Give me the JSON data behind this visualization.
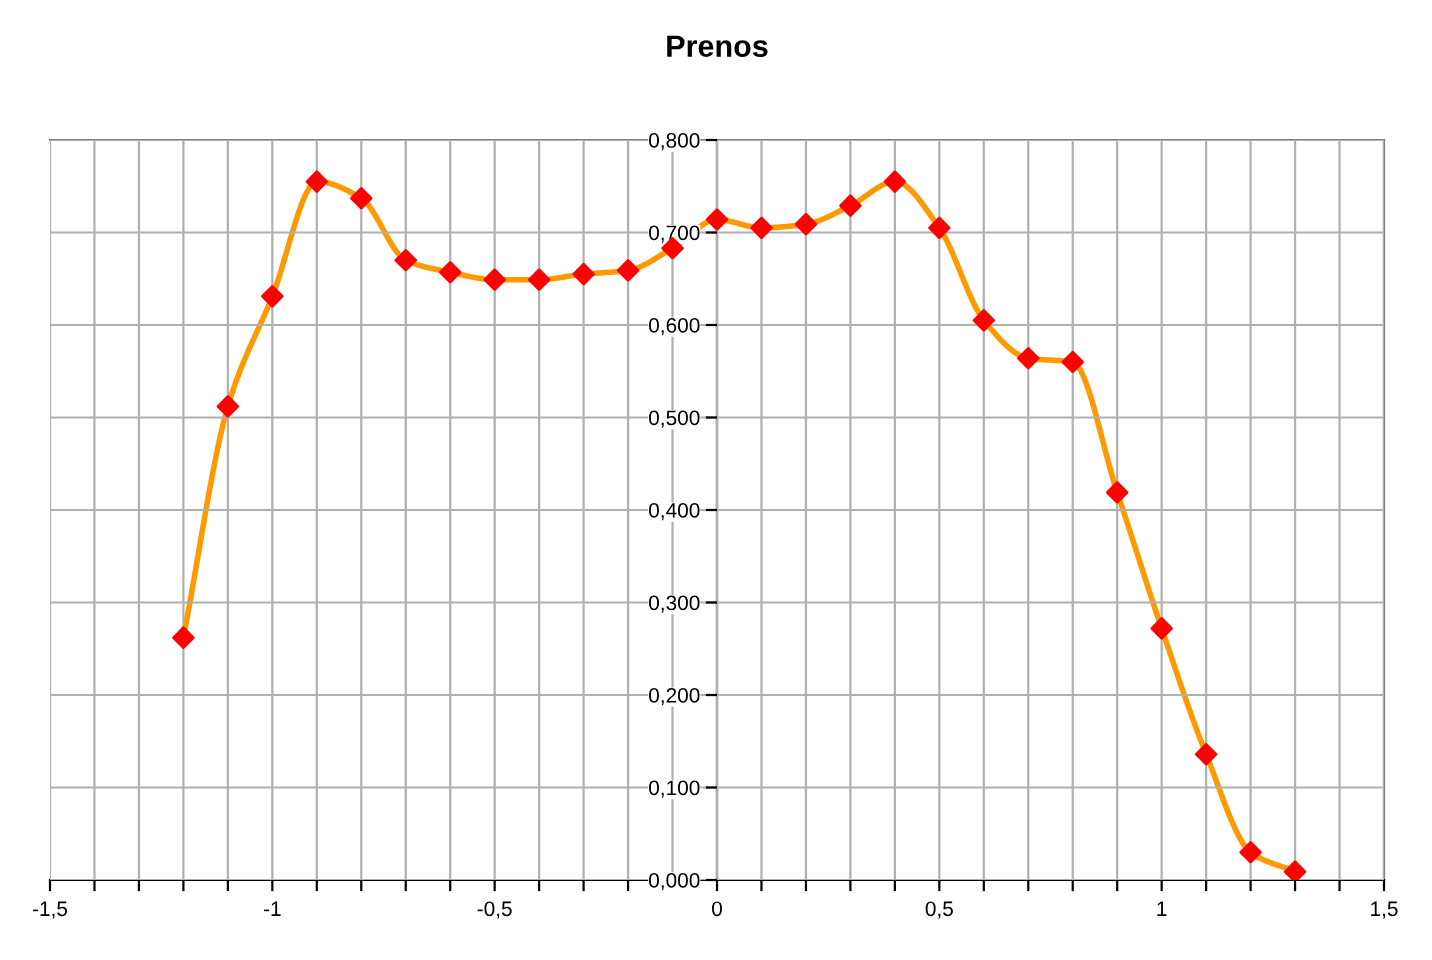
{
  "chart_data": {
    "type": "line",
    "title": "Prenos",
    "x": [
      -1.2,
      -1.1,
      -1.0,
      -0.9,
      -0.8,
      -0.7,
      -0.6,
      -0.5,
      -0.4,
      -0.3,
      -0.2,
      -0.1,
      0,
      0.1,
      0.2,
      0.3,
      0.4,
      0.5,
      0.6,
      0.7,
      0.8,
      0.9,
      1.0,
      1.1,
      1.2,
      1.3
    ],
    "series": [
      {
        "color": "#ff9900",
        "colors": [
          "#ff0000",
          "#ff0000",
          "#ff0000",
          "#ff0000",
          "#ff0000",
          "#ff0000",
          "#ff0000",
          "#ff0000",
          "#ff0000",
          "#ff0000",
          "#ff0000",
          "#ff0000",
          "#ff0000",
          "#ff0000",
          "#ff0000",
          "#ff0000",
          "#ff0000",
          "#ff0000",
          "#ff0000",
          "#ff0000",
          "#ff0000",
          "#ff0000",
          "#ff0000",
          "#ff0000",
          "#ff0000",
          "#ff0000"
        ],
        "values": [
          0.262,
          0.512,
          0.631,
          0.755,
          0.737,
          0.67,
          0.657,
          0.649,
          0.649,
          0.655,
          0.659,
          0.683,
          0.714,
          0.705,
          0.709,
          0.729,
          0.755,
          0.705,
          0.605,
          0.564,
          0.56,
          0.419,
          0.272,
          0.136,
          0.03,
          0.009
        ]
      }
    ],
    "marker": "diamond",
    "line_style": "solid",
    "grid": true,
    "legend": false,
    "xlim": [
      -1.5,
      1.5
    ],
    "xticks": [
      {
        "value": -1.5,
        "label": "-1,5"
      },
      {
        "value": -1.4,
        "label": null
      },
      {
        "value": -1.3,
        "label": null
      },
      {
        "value": -1.2,
        "label": null
      },
      {
        "value": -1.1,
        "label": null
      },
      {
        "value": -1,
        "label": "-1"
      },
      {
        "value": -0.9,
        "label": null
      },
      {
        "value": -0.8,
        "label": null
      },
      {
        "value": -0.7,
        "label": null
      },
      {
        "value": -0.6,
        "label": null
      },
      {
        "value": -0.5,
        "label": "-0,5"
      },
      {
        "value": -0.4,
        "label": null
      },
      {
        "value": -0.3,
        "label": null
      },
      {
        "value": -0.2,
        "label": null
      },
      {
        "value": -0.1,
        "label": null
      },
      0,
      {
        "value": 0.1,
        "label": null
      },
      {
        "value": 0.2,
        "label": null
      },
      {
        "value": 0.3,
        "label": null
      },
      {
        "value": 0.4,
        "label": null
      },
      {
        "value": 0.5,
        "label": "0,5"
      },
      {
        "value": 0.6,
        "label": null
      },
      {
        "value": 0.7,
        "label": null
      },
      {
        "value": 0.8,
        "label": null
      },
      {
        "value": 0.9,
        "label": null
      },
      1,
      {
        "value": 1.1,
        "label": null
      },
      {
        "value": 1.2,
        "label": null
      },
      {
        "value": 1.3,
        "label": null
      },
      {
        "value": 1.4,
        "label": null
      },
      {
        "value": 1.5,
        "label": "1,5"
      }
    ],
    "ylim": [
      0,
      0.8
    ],
    "yticks": [
      {
        "value": 0,
        "label": "0,000"
      },
      {
        "value": 0.1,
        "label": "0,100"
      },
      {
        "value": 0.2,
        "label": "0,200"
      },
      {
        "value": 0.3,
        "label": "0,300"
      },
      {
        "value": 0.4,
        "label": "0,400"
      },
      {
        "value": 0.5,
        "label": "0,500"
      },
      {
        "value": 0.6,
        "label": "0,600"
      },
      {
        "value": 0.7,
        "label": "0,700"
      },
      {
        "value": 0.8,
        "label": "0,800"
      }
    ]
  }
}
